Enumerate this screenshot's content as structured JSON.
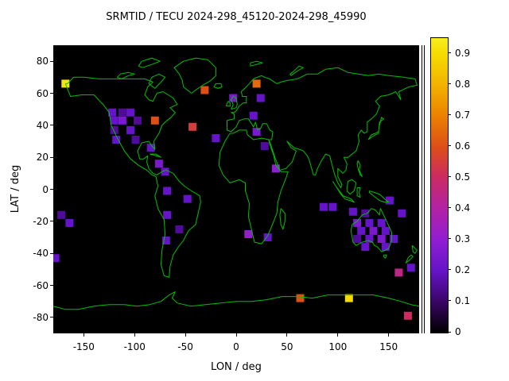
{
  "chart_data": {
    "type": "heatmap",
    "title": "SRMTID / TECU 2024-298_45120-2024-298_45990",
    "xlabel": "LON / deg",
    "ylabel": "LAT / deg",
    "xlim": [
      -180,
      180
    ],
    "ylim": [
      -90,
      90
    ],
    "x_ticks": [
      -150,
      -100,
      -50,
      0,
      50,
      100,
      150
    ],
    "y_ticks": [
      -80,
      -60,
      -40,
      -20,
      0,
      20,
      40,
      60,
      80
    ],
    "cell_size_deg": {
      "lon": 8,
      "lat": 5
    },
    "cells_format": [
      "lon",
      "lat",
      "value"
    ],
    "cells": [
      [
        -168,
        66,
        0.92
      ],
      [
        -31,
        62,
        0.6
      ],
      [
        20,
        66,
        0.65
      ],
      [
        -3,
        57,
        0.25
      ],
      [
        24,
        57,
        0.2
      ],
      [
        17,
        46,
        0.2
      ],
      [
        20,
        36,
        0.25
      ],
      [
        -122,
        48,
        0.2
      ],
      [
        -112,
        48,
        0.15
      ],
      [
        -104,
        48,
        0.2
      ],
      [
        -120,
        43,
        0.2
      ],
      [
        -112,
        43,
        0.25
      ],
      [
        -97,
        43,
        0.15
      ],
      [
        -80,
        43,
        0.6
      ],
      [
        -120,
        37,
        0.15
      ],
      [
        -104,
        37,
        0.2
      ],
      [
        -118,
        31,
        0.2
      ],
      [
        -99,
        31,
        0.15
      ],
      [
        -84,
        26,
        0.2
      ],
      [
        -76,
        16,
        0.25
      ],
      [
        -70,
        11,
        0.2
      ],
      [
        -43,
        39,
        0.55
      ],
      [
        -20,
        32,
        0.2
      ],
      [
        28,
        27,
        0.15
      ],
      [
        39,
        13,
        0.3
      ],
      [
        -68,
        -1,
        0.2
      ],
      [
        -48,
        -6,
        0.2
      ],
      [
        -68,
        -16,
        0.2
      ],
      [
        -56,
        -25,
        0.15
      ],
      [
        -69,
        -32,
        0.2
      ],
      [
        12,
        -28,
        0.3
      ],
      [
        31,
        -30,
        0.2
      ],
      [
        -172,
        -16,
        0.15
      ],
      [
        -164,
        -21,
        0.2
      ],
      [
        -178,
        -43,
        0.2
      ],
      [
        86,
        -11,
        0.2
      ],
      [
        95,
        -11,
        0.2
      ],
      [
        115,
        -14,
        0.2
      ],
      [
        127,
        -15,
        0.15
      ],
      [
        151,
        -7,
        0.2
      ],
      [
        119,
        -21,
        0.25
      ],
      [
        131,
        -21,
        0.2
      ],
      [
        143,
        -21,
        0.2
      ],
      [
        123,
        -26,
        0.2
      ],
      [
        135,
        -26,
        0.25
      ],
      [
        147,
        -26,
        0.2
      ],
      [
        119,
        -31,
        0.15
      ],
      [
        131,
        -31,
        0.2
      ],
      [
        143,
        -31,
        0.25
      ],
      [
        155,
        -31,
        0.2
      ],
      [
        127,
        -36,
        0.2
      ],
      [
        147,
        -36,
        0.2
      ],
      [
        163,
        -15,
        0.2
      ],
      [
        160,
        -52,
        0.45
      ],
      [
        172,
        -49,
        0.2
      ],
      [
        63,
        -68,
        0.6
      ],
      [
        111,
        -68,
        0.9
      ],
      [
        169,
        -79,
        0.5
      ]
    ]
  },
  "colorbar": {
    "range": [
      0,
      0.95
    ],
    "ticks": [
      0,
      0.1,
      0.2,
      0.3,
      0.4,
      0.5,
      0.6,
      0.7,
      0.8,
      0.9
    ],
    "palette": [
      [
        0,
        "#000000"
      ],
      [
        0.1,
        "#3a0566"
      ],
      [
        0.2,
        "#6614c9"
      ],
      [
        0.3,
        "#921ed2"
      ],
      [
        0.4,
        "#b322a5"
      ],
      [
        0.5,
        "#cb2a63"
      ],
      [
        0.6,
        "#de4f17"
      ],
      [
        0.7,
        "#ec8200"
      ],
      [
        0.8,
        "#f3b300"
      ],
      [
        0.9,
        "#f6dc00"
      ],
      [
        0.95,
        "#f9ee20"
      ]
    ]
  },
  "styles": {
    "plot_background": "#000000",
    "coastline_color": "#00c000",
    "page_background": "#ffffff"
  }
}
